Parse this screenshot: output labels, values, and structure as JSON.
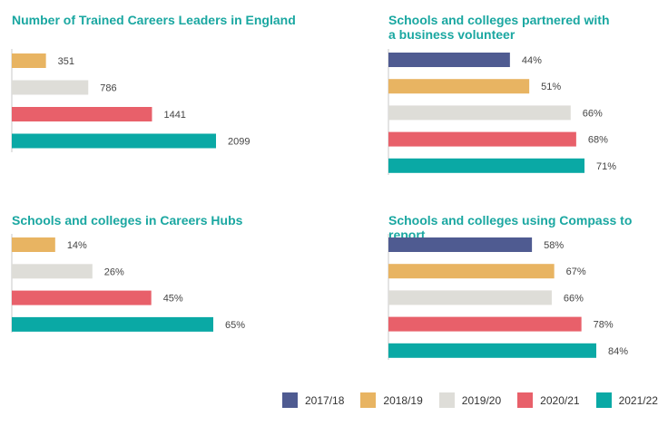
{
  "colors": {
    "2017/18": "#4f5b91",
    "2018/19": "#e8b462",
    "2019/20": "#deddd8",
    "2020/21": "#e8606a",
    "2021/22": "#0aa9a5",
    "title": "#1aa7a1",
    "axis": "#c8c8c8",
    "label": "#444444"
  },
  "legend": {
    "placement": "bottom-right",
    "items": [
      "2017/18",
      "2018/19",
      "2019/20",
      "2020/21",
      "2021/22"
    ]
  },
  "chart_data": [
    {
      "type": "bar",
      "orientation": "horizontal",
      "title": "Number of Trained Careers Leaders in England",
      "categories": [
        "2018/19",
        "2019/20",
        "2020/21",
        "2021/22"
      ],
      "values": [
        351,
        786,
        1441,
        2099
      ],
      "value_format": "number",
      "xlim": [
        0,
        2099
      ]
    },
    {
      "type": "bar",
      "orientation": "horizontal",
      "title": "Schools and colleges partnered with\na business volunteer",
      "categories": [
        "2017/18",
        "2018/19",
        "2019/20",
        "2020/21",
        "2021/22"
      ],
      "values": [
        44,
        51,
        66,
        68,
        71
      ],
      "value_format": "percent",
      "xlim": [
        0,
        71
      ]
    },
    {
      "type": "bar",
      "orientation": "horizontal",
      "title": "Schools and colleges in Careers Hubs",
      "categories": [
        "2018/19",
        "2019/20",
        "2020/21",
        "2021/22"
      ],
      "values": [
        14,
        26,
        45,
        65
      ],
      "value_format": "percent",
      "xlim": [
        0,
        65
      ]
    },
    {
      "type": "bar",
      "orientation": "horizontal",
      "title": "Schools and colleges using Compass to report",
      "categories": [
        "2017/18",
        "2018/19",
        "2019/20",
        "2020/21",
        "2021/22"
      ],
      "values": [
        58,
        67,
        66,
        78,
        84
      ],
      "value_format": "percent",
      "xlim": [
        0,
        84
      ]
    }
  ]
}
